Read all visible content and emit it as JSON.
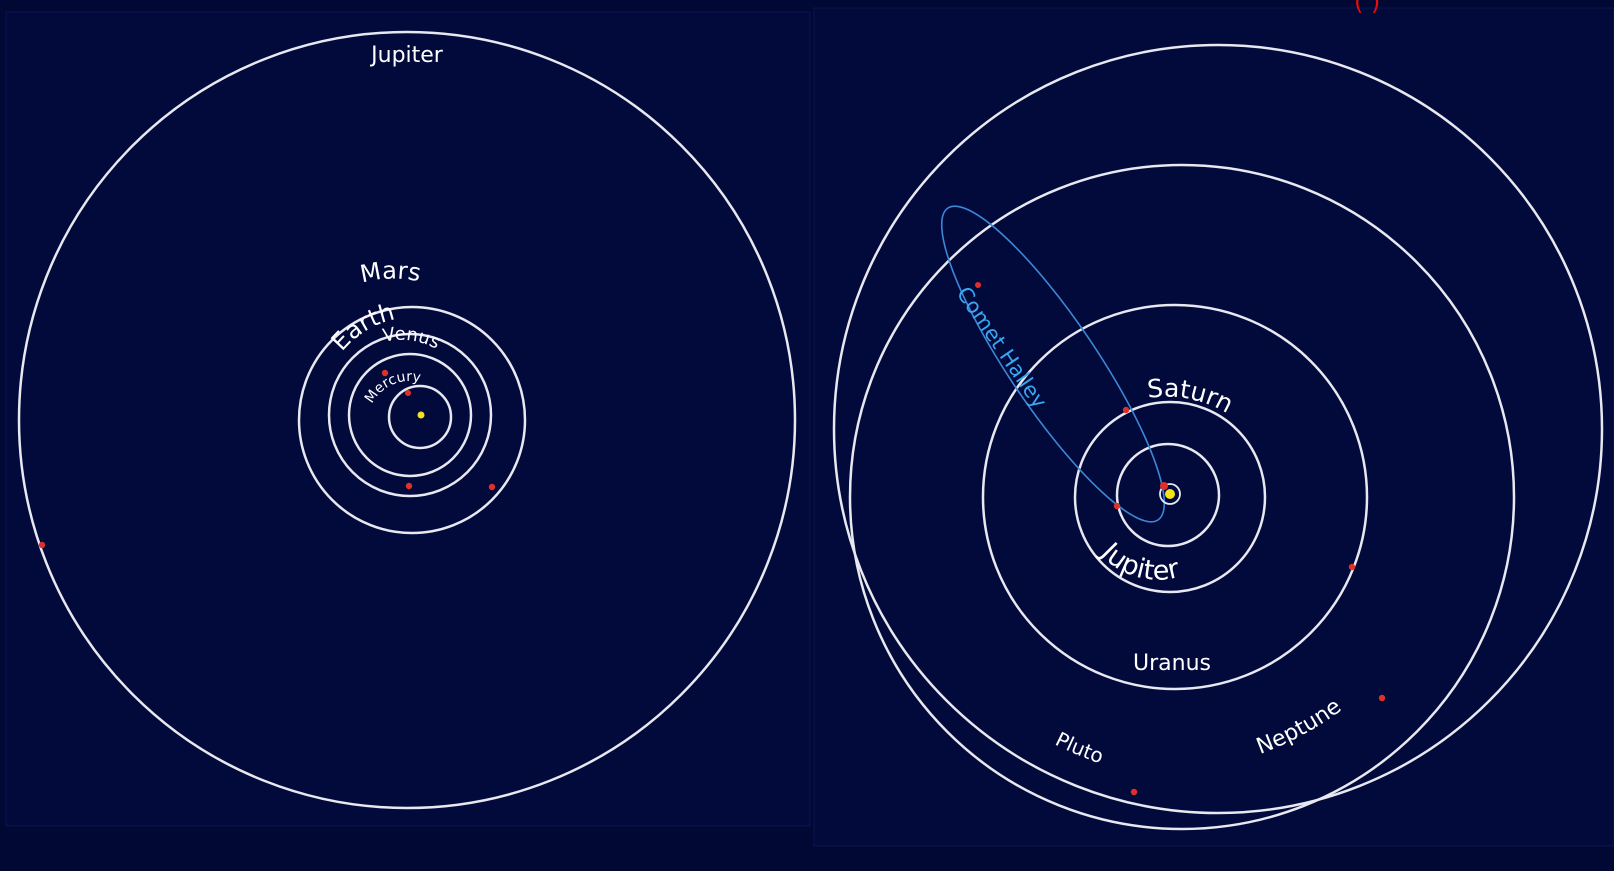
{
  "colors": {
    "background": "#000833",
    "panel_background": "#020a3b",
    "orbit": "#e8e8f0",
    "planet_marker": "#e0302a",
    "sun": "#f2e31c",
    "comet_label": "#39a6f2",
    "header_text": "#e01010"
  },
  "header": {
    "text": "( )"
  },
  "inner_panel": {
    "labels": {
      "jupiter": "Jupiter",
      "mars": "Mars",
      "earth": "Earth",
      "venus": "Venus",
      "mercury": "Mercury"
    }
  },
  "outer_panel": {
    "labels": {
      "comet": "Comet Halley",
      "saturn": "Saturn",
      "jupiter": "Jupiter",
      "uranus": "Uranus",
      "neptune": "Neptune",
      "pluto": "Pluto"
    }
  }
}
